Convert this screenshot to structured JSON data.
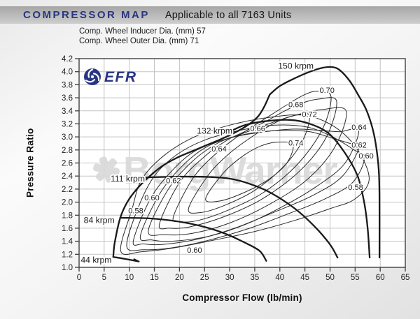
{
  "header": {
    "title": "COMPRESSOR MAP",
    "subtitle": "Applicable to all 7163 Units"
  },
  "specs": {
    "line1": "Comp. Wheel Inducer Dia. (mm) 57",
    "line2": "Comp. Wheel Outer Dia. (mm) 71"
  },
  "logo": {
    "text": "EFR"
  },
  "watermark": {
    "text": "BorgWarner"
  },
  "colors": {
    "accent_navy": "#283583",
    "curve": "#1a1a1a",
    "contour": "#2a2a2a",
    "grid": "#c3c3c3",
    "frame": "#3f3f3f",
    "tick_text": "#222222",
    "watermark": "#d9d9d9",
    "bar_top": "#a6a6a6",
    "bar_bottom": "#cdcdcd"
  },
  "chart_data": {
    "type": "line",
    "title": "Compressor map with speed lines (krpm) and efficiency contour islands",
    "xlabel": "Compressor Flow (lb/min)",
    "ylabel": "Pressure Ratio",
    "xlim": [
      0,
      65
    ],
    "ylim": [
      1.0,
      4.2
    ],
    "xticks": [
      0,
      5,
      10,
      15,
      20,
      25,
      30,
      35,
      40,
      45,
      50,
      55,
      60,
      65
    ],
    "yticks": [
      "1.0",
      "1.2",
      "1.4",
      "1.6",
      "1.8",
      "2.0",
      "2.2",
      "2.4",
      "2.6",
      "2.8",
      "3.0",
      "3.2",
      "3.4",
      "3.6",
      "3.8",
      "4.0",
      "4.2"
    ],
    "grid": true,
    "surge_line": [
      [
        6.8,
        1.16
      ],
      [
        7.1,
        1.38
      ],
      [
        8.2,
        1.76
      ],
      [
        9.6,
        2.0
      ],
      [
        11.5,
        2.2
      ],
      [
        13.8,
        2.38
      ],
      [
        16.5,
        2.55
      ],
      [
        19.5,
        2.68
      ],
      [
        22.5,
        2.78
      ],
      [
        25,
        2.86
      ],
      [
        29,
        2.99
      ],
      [
        33,
        3.15
      ],
      [
        35.5,
        3.3
      ],
      [
        36.8,
        3.45
      ],
      [
        38,
        3.65
      ]
    ],
    "speed_lines": [
      {
        "name": "44 krpm",
        "label_pos": [
          3.4,
          1.115
        ],
        "points": [
          [
            6.8,
            1.16
          ],
          [
            9.2,
            1.128
          ],
          [
            11.9,
            1.09
          ]
        ],
        "tick": [
          [
            11.9,
            1.09
          ],
          [
            10.85,
            1.13
          ]
        ]
      },
      {
        "name": "84 krpm",
        "label_pos": [
          4.0,
          1.72
        ],
        "points": [
          [
            8.2,
            1.76
          ],
          [
            14,
            1.75
          ],
          [
            20,
            1.7
          ],
          [
            25,
            1.62
          ],
          [
            29,
            1.52
          ],
          [
            33,
            1.38
          ],
          [
            36,
            1.25
          ],
          [
            37.3,
            1.1
          ]
        ]
      },
      {
        "name": "111 krpm",
        "label_pos": [
          9.7,
          2.36
        ],
        "points": [
          [
            12.3,
            2.37
          ],
          [
            13.8,
            2.38
          ],
          [
            20,
            2.39
          ],
          [
            26,
            2.385
          ],
          [
            30,
            2.36
          ],
          [
            34,
            2.28
          ],
          [
            38,
            2.15
          ],
          [
            43,
            1.9
          ],
          [
            47,
            1.62
          ],
          [
            50,
            1.35
          ],
          [
            51.5,
            1.15
          ]
        ]
      },
      {
        "name": "132 krpm",
        "label_pos": [
          27.0,
          3.09
        ],
        "points": [
          [
            30.5,
            3.1
          ],
          [
            33,
            3.18
          ],
          [
            37,
            3.24
          ],
          [
            42,
            3.26
          ],
          [
            46,
            3.2
          ],
          [
            49.8,
            3.05
          ],
          [
            53,
            2.75
          ],
          [
            55.5,
            2.4
          ],
          [
            56.8,
            2.0
          ],
          [
            57.5,
            1.6
          ],
          [
            57.9,
            1.15
          ]
        ]
      },
      {
        "name": "150 krpm",
        "label_pos": [
          43.2,
          4.09
        ],
        "points": [
          [
            38,
            3.65
          ],
          [
            40,
            3.78
          ],
          [
            43,
            3.9
          ],
          [
            46,
            4.0
          ],
          [
            48.5,
            4.06
          ],
          [
            50.5,
            4.07
          ],
          [
            52,
            4.02
          ],
          [
            54,
            3.85
          ],
          [
            55.8,
            3.62
          ],
          [
            57.2,
            3.42
          ],
          [
            58.4,
            3.15
          ],
          [
            59.2,
            2.85
          ],
          [
            59.7,
            2.5
          ],
          [
            59.85,
            2.1
          ],
          [
            59.85,
            1.15
          ]
        ]
      }
    ],
    "efficiency_contours": [
      {
        "value": 0.58,
        "points": [
          [
            8.3,
            1.25
          ],
          [
            10.5,
            1.88
          ],
          [
            12.5,
            2.35
          ],
          [
            17,
            2.72
          ],
          [
            23,
            3.0
          ],
          [
            30,
            3.18
          ],
          [
            38,
            3.3
          ],
          [
            45,
            3.33
          ],
          [
            51,
            3.15
          ],
          [
            55.5,
            2.8
          ],
          [
            57.8,
            2.35
          ],
          [
            55,
            2.05
          ],
          [
            50,
            1.9
          ],
          [
            43,
            1.72
          ],
          [
            35,
            1.55
          ],
          [
            27,
            1.42
          ],
          [
            19,
            1.3
          ],
          [
            12.5,
            1.24
          ]
        ]
      },
      {
        "value": 0.6,
        "points": [
          [
            9.5,
            1.32
          ],
          [
            11.8,
            1.92
          ],
          [
            15,
            2.4
          ],
          [
            19.5,
            2.73
          ],
          [
            25,
            2.95
          ],
          [
            32,
            3.1
          ],
          [
            39,
            3.18
          ],
          [
            45.5,
            3.15
          ],
          [
            50.5,
            3.0
          ],
          [
            54.8,
            2.8
          ],
          [
            56.9,
            2.68
          ],
          [
            54.5,
            2.3
          ],
          [
            49,
            2.05
          ],
          [
            42,
            1.83
          ],
          [
            34,
            1.6
          ],
          [
            26,
            1.42
          ],
          [
            18.5,
            1.3
          ],
          [
            13,
            1.27
          ]
        ]
      },
      {
        "value": 0.62,
        "points": [
          [
            10.8,
            1.4
          ],
          [
            14.2,
            2.05
          ],
          [
            18.5,
            2.48
          ],
          [
            23,
            2.78
          ],
          [
            28.5,
            2.95
          ],
          [
            34.5,
            3.06
          ],
          [
            40.5,
            3.1
          ],
          [
            46,
            3.08
          ],
          [
            50.5,
            2.98
          ],
          [
            54,
            2.9
          ],
          [
            55.9,
            2.86
          ],
          [
            52.5,
            2.4
          ],
          [
            46.5,
            2.1
          ],
          [
            39,
            1.85
          ],
          [
            31,
            1.6
          ],
          [
            23.5,
            1.43
          ],
          [
            16.5,
            1.35
          ],
          [
            12.8,
            1.36
          ]
        ]
      },
      {
        "value": 0.64,
        "points": [
          [
            12.2,
            1.48
          ],
          [
            16,
            2.12
          ],
          [
            20.5,
            2.55
          ],
          [
            25.5,
            2.85
          ],
          [
            31,
            3.0
          ],
          [
            37,
            3.08
          ],
          [
            43,
            3.12
          ],
          [
            48,
            3.1
          ],
          [
            52,
            3.08
          ],
          [
            55.7,
            3.1
          ],
          [
            53,
            2.6
          ],
          [
            47.5,
            2.25
          ],
          [
            41,
            1.95
          ],
          [
            33.5,
            1.67
          ],
          [
            26,
            1.48
          ],
          [
            18.5,
            1.4
          ],
          [
            14.5,
            1.42
          ]
        ]
      },
      {
        "value": 0.66,
        "points": [
          [
            13.8,
            1.56
          ],
          [
            17.8,
            2.2
          ],
          [
            22.5,
            2.62
          ],
          [
            27.5,
            2.9
          ],
          [
            32.5,
            3.05
          ],
          [
            36,
            3.15
          ],
          [
            40,
            3.26
          ],
          [
            44,
            3.35
          ],
          [
            48.5,
            3.42
          ],
          [
            53.2,
            3.4
          ],
          [
            51,
            2.85
          ],
          [
            45.5,
            2.35
          ],
          [
            38,
            1.97
          ],
          [
            30,
            1.68
          ],
          [
            22.5,
            1.52
          ],
          [
            16.8,
            1.5
          ]
        ]
      },
      {
        "value": 0.68,
        "points": [
          [
            16,
            1.66
          ],
          [
            20,
            2.3
          ],
          [
            25,
            2.7
          ],
          [
            29.5,
            2.95
          ],
          [
            33.5,
            3.1
          ],
          [
            37.5,
            3.25
          ],
          [
            41,
            3.4
          ],
          [
            44.5,
            3.52
          ],
          [
            47.8,
            3.58
          ],
          [
            51.3,
            3.55
          ],
          [
            49.3,
            3.0
          ],
          [
            44,
            2.48
          ],
          [
            36.5,
            2.05
          ],
          [
            29,
            1.78
          ],
          [
            22,
            1.62
          ],
          [
            18,
            1.6
          ]
        ]
      },
      {
        "value": 0.7,
        "points": [
          [
            18.8,
            1.78
          ],
          [
            22.8,
            2.38
          ],
          [
            27.5,
            2.76
          ],
          [
            31.5,
            3.0
          ],
          [
            35,
            3.18
          ],
          [
            38.5,
            3.35
          ],
          [
            42,
            3.52
          ],
          [
            45,
            3.65
          ],
          [
            47.5,
            3.7
          ],
          [
            50.2,
            3.62
          ],
          [
            48.5,
            3.12
          ],
          [
            43.5,
            2.58
          ],
          [
            36.8,
            2.15
          ],
          [
            29.8,
            1.88
          ],
          [
            23.8,
            1.72
          ],
          [
            20.2,
            1.7
          ]
        ]
      },
      {
        "value": 0.72,
        "points": [
          [
            21.8,
            1.9
          ],
          [
            25.8,
            2.42
          ],
          [
            30,
            2.75
          ],
          [
            34,
            2.98
          ],
          [
            37.5,
            3.15
          ],
          [
            40.8,
            3.28
          ],
          [
            43.8,
            3.34
          ],
          [
            45.9,
            3.32
          ],
          [
            44.6,
            2.95
          ],
          [
            40.8,
            2.55
          ],
          [
            35,
            2.18
          ],
          [
            29,
            1.95
          ],
          [
            24.2,
            1.84
          ]
        ]
      },
      {
        "value": 0.74,
        "points": [
          [
            25.2,
            2.05
          ],
          [
            28.8,
            2.45
          ],
          [
            32.5,
            2.7
          ],
          [
            36.2,
            2.86
          ],
          [
            39.5,
            2.92
          ],
          [
            42.6,
            2.88
          ],
          [
            41.4,
            2.6
          ],
          [
            37.8,
            2.35
          ],
          [
            33,
            2.15
          ],
          [
            28.2,
            2.02
          ]
        ]
      }
    ],
    "efficiency_labels": [
      {
        "text": "0.58",
        "pos": [
          11.3,
          1.87
        ]
      },
      {
        "text": "0.60",
        "pos": [
          14.5,
          2.07
        ]
      },
      {
        "text": "0.62",
        "pos": [
          18.8,
          2.33
        ]
      },
      {
        "text": "0.64",
        "pos": [
          27.9,
          2.82
        ]
      },
      {
        "text": "0.66",
        "pos": [
          35.6,
          3.13
        ]
      },
      {
        "text": "0.72",
        "pos": [
          45.9,
          3.35
        ]
      },
      {
        "text": "0.68",
        "pos": [
          43.2,
          3.5
        ]
      },
      {
        "text": "0.70",
        "pos": [
          49.4,
          3.72
        ]
      },
      {
        "text": "0.74",
        "pos": [
          43.2,
          2.91
        ]
      },
      {
        "text": "0.60",
        "pos": [
          23.0,
          1.27
        ]
      },
      {
        "text": "0.64",
        "pos": [
          55.8,
          3.15
        ]
      },
      {
        "text": "0.62",
        "pos": [
          55.8,
          2.88
        ]
      },
      {
        "text": "0.60",
        "pos": [
          57.2,
          2.71
        ]
      },
      {
        "text": "0.58",
        "pos": [
          55.1,
          2.23
        ]
      }
    ]
  }
}
